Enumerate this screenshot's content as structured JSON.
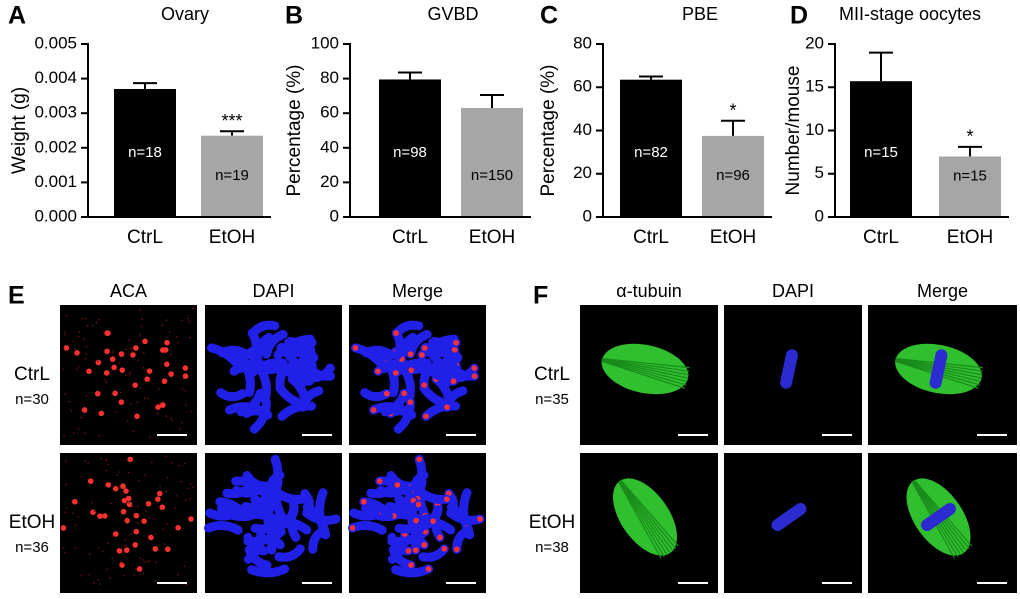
{
  "chart_data": [
    {
      "type": "bar",
      "panel": "A",
      "title": "Ovary",
      "ylabel": "Weight (g)",
      "categories": [
        "CtrL",
        "EtOH"
      ],
      "values": [
        0.0037,
        0.00235
      ],
      "errors": [
        0.00017,
        0.00013
      ],
      "colors": [
        "#000000",
        "#a6a6a6"
      ],
      "annotations": [
        "n=18",
        "n=19"
      ],
      "significance": [
        null,
        "***"
      ],
      "ylim": [
        0,
        0.005
      ],
      "yticks": [
        {
          "value": 0,
          "label": "0.000"
        },
        0.001,
        0.002,
        0.003,
        0.004,
        0.005
      ]
    },
    {
      "type": "bar",
      "panel": "B",
      "title": "GVBD",
      "ylabel": "Percentage (%)",
      "categories": [
        "CtrL",
        "EtOH"
      ],
      "values": [
        79.5,
        63
      ],
      "errors": [
        4,
        7.5
      ],
      "colors": [
        "#000000",
        "#a6a6a6"
      ],
      "annotations": [
        "n=98",
        "n=150"
      ],
      "significance": [
        null,
        null
      ],
      "ylim": [
        0,
        100
      ],
      "yticks": [
        0,
        20,
        40,
        60,
        80,
        100
      ]
    },
    {
      "type": "bar",
      "panel": "C",
      "title": "PBE",
      "ylabel": "Percentage (%)",
      "categories": [
        "CtrL",
        "EtOH"
      ],
      "values": [
        63.5,
        37.5
      ],
      "errors": [
        1.5,
        7
      ],
      "colors": [
        "#000000",
        "#a6a6a6"
      ],
      "annotations": [
        "n=82",
        "n=96"
      ],
      "significance": [
        null,
        "*"
      ],
      "ylim": [
        0,
        80
      ],
      "yticks": [
        0,
        20,
        40,
        60,
        80
      ]
    },
    {
      "type": "bar",
      "panel": "D",
      "title": "MII-stage oocytes",
      "ylabel": "Number/mouse",
      "categories": [
        "CtrL",
        "EtOH"
      ],
      "values": [
        15.7,
        7
      ],
      "errors": [
        3.3,
        1.1
      ],
      "colors": [
        "#000000",
        "#a6a6a6"
      ],
      "annotations": [
        "n=15",
        "n=15"
      ],
      "significance": [
        null,
        "*"
      ],
      "ylim": [
        0,
        20
      ],
      "yticks": [
        0,
        5,
        10,
        15,
        20
      ]
    }
  ],
  "image_panels": [
    {
      "panel": "E",
      "columns": [
        "ACA",
        "DAPI",
        "Merge"
      ],
      "rows": [
        {
          "label": "CtrL",
          "n": "n=30"
        },
        {
          "label": "EtOH",
          "n": "n=36"
        }
      ]
    },
    {
      "panel": "F",
      "columns": [
        "α-tubuin",
        "DAPI",
        "Merge"
      ],
      "rows": [
        {
          "label": "CtrL",
          "n": "n=35"
        },
        {
          "label": "EtOH",
          "n": "n=38"
        }
      ]
    }
  ]
}
